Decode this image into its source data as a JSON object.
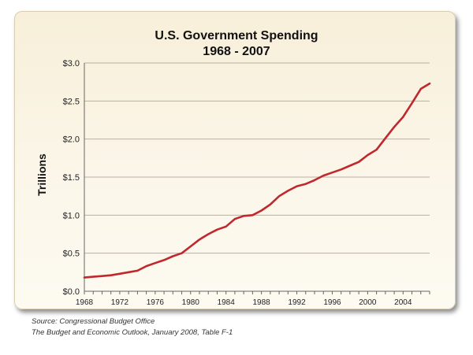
{
  "chart_data": {
    "type": "line",
    "title": "U.S. Government Spending",
    "subtitle": "1968 - 2007",
    "xlabel": "",
    "ylabel": "Trillions",
    "xlim": [
      1968,
      2007
    ],
    "ylim": [
      0,
      3.0
    ],
    "yticks": [
      0,
      0.5,
      1.0,
      1.5,
      2.0,
      2.5,
      3.0
    ],
    "ytick_labels": [
      "$0.0",
      "$0.5",
      "$1.0",
      "$1.5",
      "$2.0",
      "$2.5",
      "$3.0"
    ],
    "xticks": [
      1968,
      1972,
      1976,
      1980,
      1984,
      1988,
      1992,
      1996,
      2000,
      2004
    ],
    "xtick_labels": [
      "1968",
      "1972",
      "1976",
      "1980",
      "1984",
      "1988",
      "1992",
      "1996",
      "2000",
      "2004"
    ],
    "grid": true,
    "series": [
      {
        "color": "#c0282d",
        "x": [
          1968,
          1969,
          1970,
          1971,
          1972,
          1973,
          1974,
          1975,
          1976,
          1977,
          1978,
          1979,
          1980,
          1981,
          1982,
          1983,
          1984,
          1985,
          1986,
          1987,
          1988,
          1989,
          1990,
          1991,
          1992,
          1993,
          1994,
          1995,
          1996,
          1997,
          1998,
          1999,
          2000,
          2001,
          2002,
          2003,
          2004,
          2005,
          2006,
          2007
        ],
        "values": [
          0.18,
          0.19,
          0.2,
          0.21,
          0.23,
          0.25,
          0.27,
          0.33,
          0.37,
          0.41,
          0.46,
          0.5,
          0.59,
          0.68,
          0.75,
          0.81,
          0.85,
          0.95,
          0.99,
          1.0,
          1.06,
          1.14,
          1.25,
          1.32,
          1.38,
          1.41,
          1.46,
          1.52,
          1.56,
          1.6,
          1.65,
          1.7,
          1.79,
          1.86,
          2.01,
          2.16,
          2.29,
          2.47,
          2.66,
          2.73
        ]
      }
    ]
  },
  "source": {
    "line1": "Source: Congressional Budget Office",
    "line2": "The Budget and Economic Outlook, January 2008, Table F-1"
  }
}
